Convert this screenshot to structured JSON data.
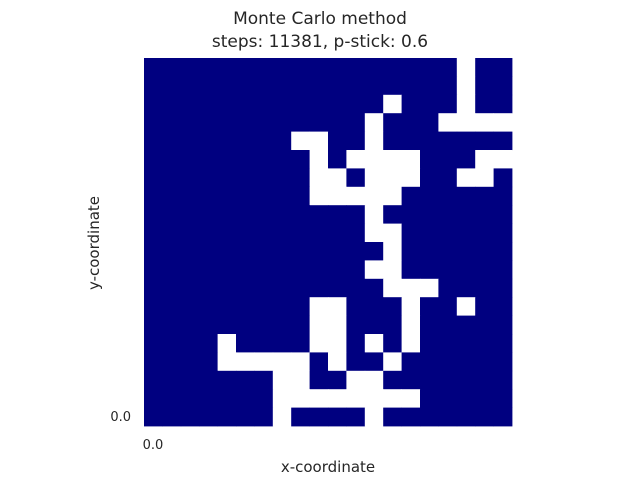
{
  "chart_data": {
    "type": "heatmap",
    "title": "Monte Carlo method",
    "subtitle": "steps: 11381, p-stick: 0.6",
    "xlabel": "x-coordinate",
    "ylabel": "y-coordinate",
    "x_tick_labels": [
      "0.0"
    ],
    "y_tick_labels": [
      "0.0"
    ],
    "grid_size": [
      20,
      20
    ],
    "colors": {
      "occupied": "#000080",
      "empty": "#ffffff"
    },
    "grid": [
      "#################.##",
      "#################.##",
      "#############.###.##",
      "############.###....",
      "########..##.#######",
      "#########.#....###..",
      "#########..#...##..#",
      "#########.....######",
      "############.#######",
      "############..######",
      "#############.######",
      "############..######",
      "#############...####",
      "#########..###.##.##",
      "#########..###.#####",
      "####.####..#.#.#####",
      "####.....#.##.######",
      "#######..##..#######",
      "#######........#####",
      "#######.####.#######"
    ]
  }
}
